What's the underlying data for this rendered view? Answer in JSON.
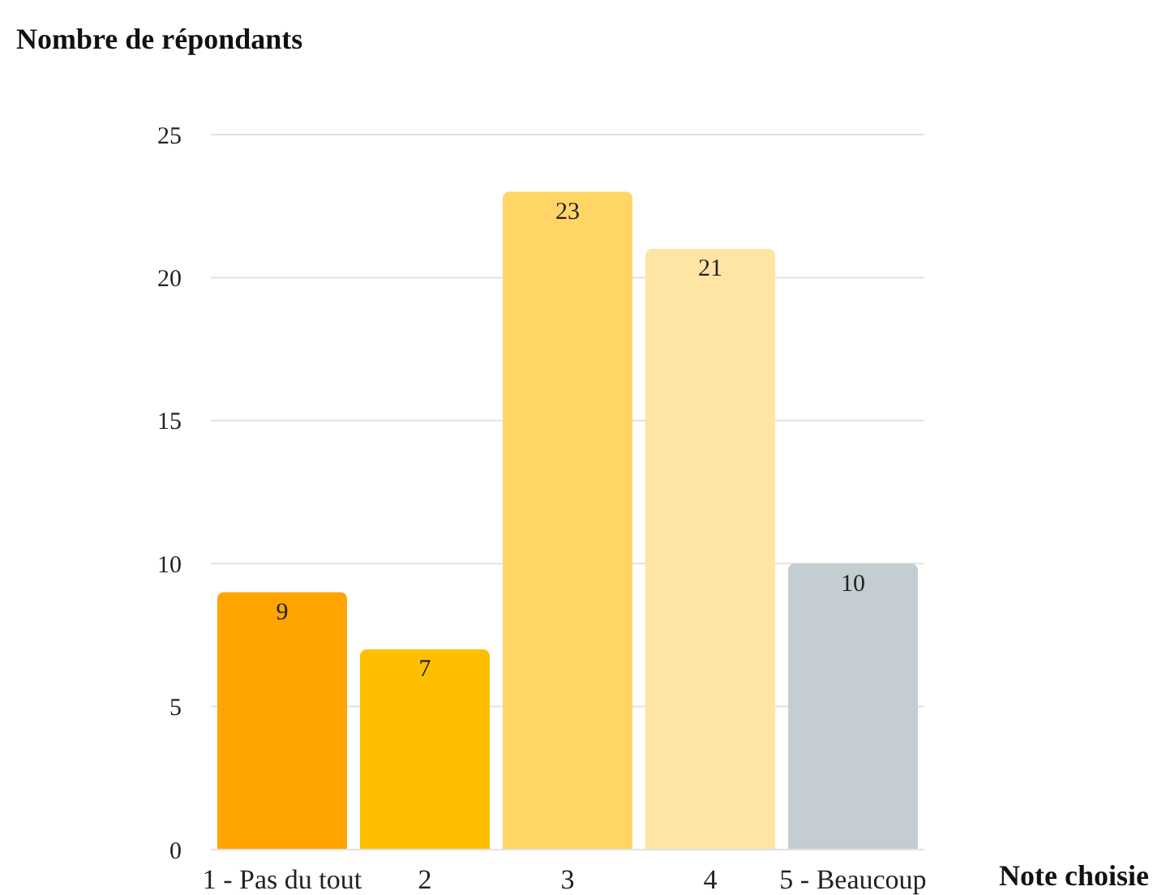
{
  "chart_data": {
    "type": "bar",
    "xlabel": "Note choisie",
    "ylabel": "Nombre de répondants",
    "categories": [
      "1 - Pas du tout",
      "2",
      "3",
      "4",
      "5 - Beaucoup"
    ],
    "values": [
      9,
      7,
      23,
      21,
      10
    ],
    "colors": [
      "#ffa400",
      "#ffbf00",
      "#ffd666",
      "#ffe5a3",
      "#c4cdd2"
    ],
    "ylim": [
      0,
      25
    ],
    "yticks": [
      0,
      5,
      10,
      15,
      20,
      25
    ],
    "grid": "y",
    "data_labels": true
  }
}
